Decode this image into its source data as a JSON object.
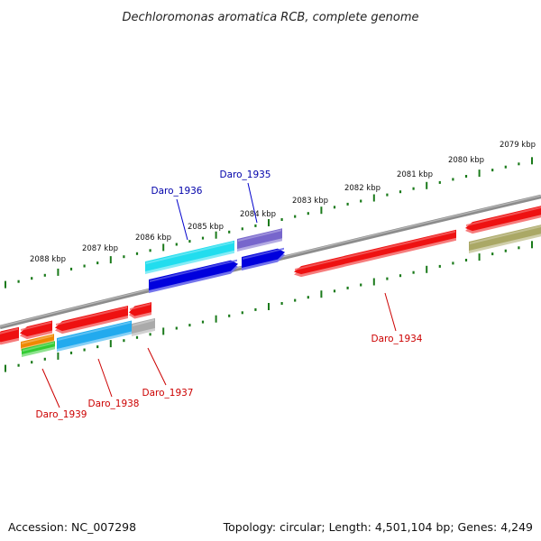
{
  "title": "Dechloromonas aromatica RCB, complete genome",
  "scale_ticks": [
    "2079 kbp",
    "2080 kbp",
    "2081 kbp",
    "2082 kbp",
    "2083 kbp",
    "2084 kbp",
    "2085 kbp",
    "2086 kbp",
    "2087 kbp",
    "2088 kbp"
  ],
  "gene_labels": [
    {
      "name": "Daro_1935",
      "color": "#0000aa"
    },
    {
      "name": "Daro_1936",
      "color": "#0000aa"
    },
    {
      "name": "Daro_1934",
      "color": "#cc0000"
    },
    {
      "name": "Daro_1937",
      "color": "#cc0000"
    },
    {
      "name": "Daro_1938",
      "color": "#cc0000"
    },
    {
      "name": "Daro_1939",
      "color": "#cc0000"
    }
  ],
  "colors": {
    "red": "#ee1111",
    "blue": "#0000dd",
    "cyan": "#22ddee",
    "sky": "#22aaee",
    "purple": "#7766cc",
    "olive": "#aaa866",
    "orange": "#ee8800",
    "green": "#33cc33",
    "grey": "#aaaaaa",
    "backbone": "#808080",
    "tick": "#1a7a1a"
  },
  "footer": {
    "accession": "Accession: NC_007298",
    "summary": "Topology: circular; Length: 4,501,104 bp; Genes: 4,249"
  }
}
